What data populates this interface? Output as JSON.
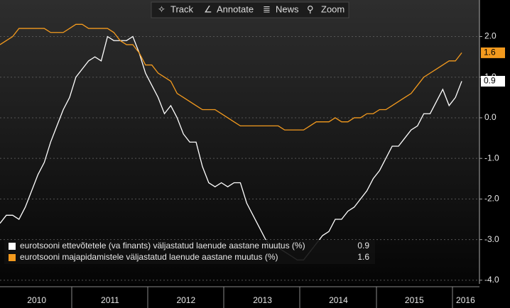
{
  "toolbar": [
    "Track",
    "Annotate",
    "News",
    "Zoom"
  ],
  "chart_data": {
    "type": "line",
    "xlim": [
      0,
      75.8
    ],
    "xticks": [
      {
        "value": 5.8,
        "label": "2010"
      },
      {
        "value": 17.4,
        "label": "2011"
      },
      {
        "value": 29.4,
        "label": "2012"
      },
      {
        "value": 41.5,
        "label": "2013"
      },
      {
        "value": 53.5,
        "label": "2014"
      },
      {
        "value": 65.5,
        "label": "2015"
      },
      {
        "value": 73.6,
        "label": "2016"
      }
    ],
    "ylim": [
      -4.09,
      2.9
    ],
    "yticks": [
      {
        "value": 2,
        "label": "2.0"
      },
      {
        "value": 1,
        "label": "1.0"
      },
      {
        "value": 0,
        "label": "0.0"
      },
      {
        "value": -1,
        "label": "-1.0"
      },
      {
        "value": -2,
        "label": "-2.0"
      },
      {
        "value": -3,
        "label": "-3.0"
      },
      {
        "value": -4,
        "label": "-4.0"
      }
    ],
    "grid": true,
    "series": [
      {
        "name": "eurotsooni ettevõtetele (va finants) väljastatud laenude aastane muutus (%)",
        "color": "#ffffff",
        "values": [
          -2.6,
          -2.4,
          -2.4,
          -2.5,
          -2.2,
          -1.8,
          -1.4,
          -1.1,
          -0.6,
          -0.2,
          0.2,
          0.5,
          1.0,
          1.2,
          1.4,
          1.5,
          1.4,
          2.0,
          1.9,
          1.9,
          1.9,
          2.0,
          1.6,
          1.1,
          0.8,
          0.5,
          0.1,
          0.3,
          0.0,
          -0.4,
          -0.6,
          -0.6,
          -1.2,
          -1.6,
          -1.7,
          -1.6,
          -1.7,
          -1.6,
          -1.6,
          -2.1,
          -2.4,
          -2.7,
          -3.0,
          -3.2,
          -3.2,
          -3.3,
          -3.4,
          -3.5,
          -3.5,
          -3.3,
          -3.1,
          -2.9,
          -2.8,
          -2.5,
          -2.5,
          -2.3,
          -2.2,
          -2.0,
          -1.8,
          -1.5,
          -1.3,
          -1.0,
          -0.7,
          -0.7,
          -0.5,
          -0.3,
          -0.2,
          0.1,
          0.1,
          0.4,
          0.7,
          0.3,
          0.5,
          0.9
        ]
      },
      {
        "name": "eurotsooni majapidamistele väljastatud laenude aastane muutus (%)",
        "color": "#f39a1e",
        "values": [
          1.8,
          1.9,
          2.0,
          2.2,
          2.2,
          2.2,
          2.2,
          2.2,
          2.1,
          2.1,
          2.1,
          2.2,
          2.3,
          2.3,
          2.2,
          2.2,
          2.2,
          2.2,
          2.1,
          1.9,
          1.8,
          1.8,
          1.6,
          1.3,
          1.3,
          1.1,
          1.0,
          0.9,
          0.6,
          0.5,
          0.4,
          0.3,
          0.2,
          0.2,
          0.2,
          0.1,
          0.0,
          -0.1,
          -0.2,
          -0.2,
          -0.2,
          -0.2,
          -0.2,
          -0.2,
          -0.2,
          -0.3,
          -0.3,
          -0.3,
          -0.3,
          -0.2,
          -0.1,
          -0.1,
          -0.1,
          0.0,
          -0.1,
          -0.1,
          0.0,
          0.0,
          0.1,
          0.1,
          0.2,
          0.2,
          0.3,
          0.4,
          0.5,
          0.6,
          0.8,
          1.0,
          1.1,
          1.2,
          1.3,
          1.4,
          1.4,
          1.6
        ]
      }
    ]
  }
}
